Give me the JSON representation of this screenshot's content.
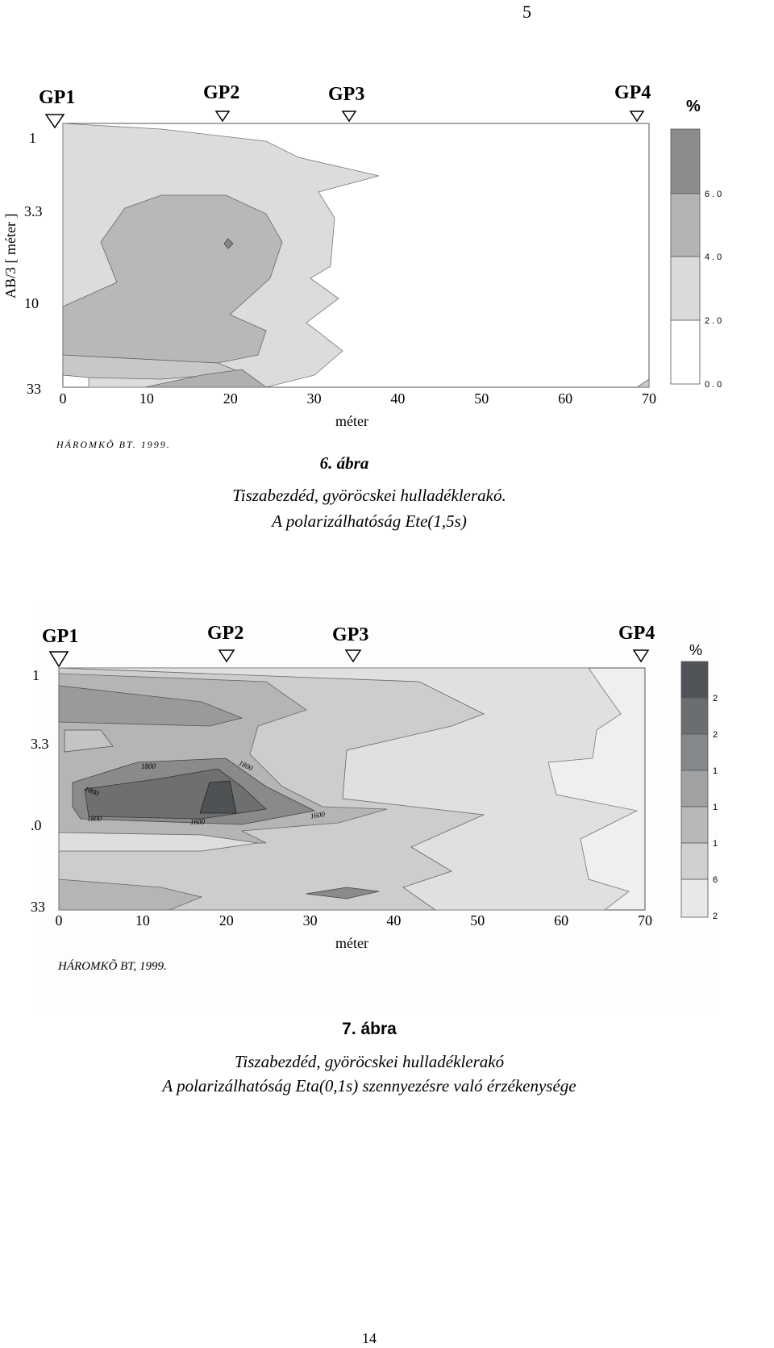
{
  "page_mark": "5",
  "figure_1": {
    "stations": [
      "GP1",
      "GP2",
      "GP3",
      "GP4"
    ],
    "unit": "%",
    "y_labels": [
      "1",
      "3.3",
      "10",
      "33"
    ],
    "y_axis_label": "AB/3 [ méter ]",
    "x_ticks": [
      0,
      10,
      20,
      30,
      40,
      50,
      60,
      70
    ],
    "x_axis_label": "méter",
    "legend_labels": [
      "6.0",
      "4.0",
      "2.0",
      "0.0"
    ],
    "credit": "HÁROMKÕ BT. 1999.",
    "caption_number": "6. ábra",
    "caption_lines": [
      "Tiszabezdéd, györöcskei hulladéklerakó.",
      "A polarizálhatóság Ete(1,5s)"
    ]
  },
  "figure_2": {
    "stations": [
      "GP1",
      "GP2",
      "GP3",
      "GP4"
    ],
    "unit": "%",
    "y_labels": [
      "1",
      "3.3",
      ".0",
      "33"
    ],
    "x_ticks": [
      0,
      10,
      20,
      30,
      40,
      50,
      60,
      70
    ],
    "x_axis_label": "méter",
    "legend_labels": [
      "2",
      "2",
      "1",
      "1",
      "1",
      "6",
      "2"
    ],
    "contour_labels": [
      "1800",
      "1800",
      "1800",
      "1800",
      "1600",
      "1600"
    ],
    "credit": "HÁROMKÕ BT, 1999.",
    "caption_number": "7. ábra",
    "caption_lines": [
      "Tiszabezdéd, györöcskei hulladéklerakó",
      "A polarizálhatóság Eta(0,1s) szennyezésre való érzékenysége"
    ]
  },
  "page_number": "14"
}
